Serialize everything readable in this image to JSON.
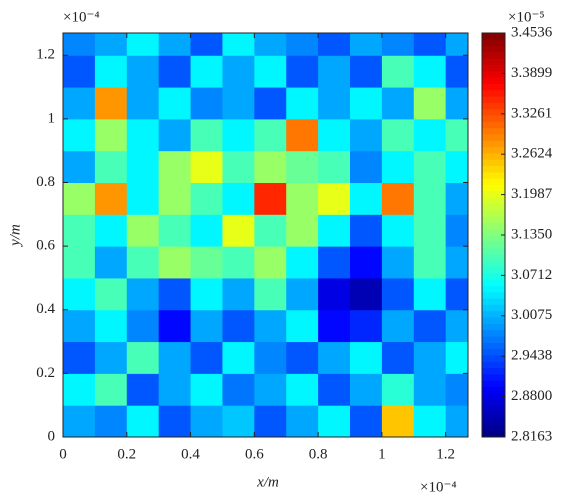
{
  "chart_data": {
    "type": "heatmap",
    "xlabel": "x/m",
    "ylabel": "y/m",
    "x_multiplier": "×10⁻⁴",
    "y_multiplier": "×10⁻⁴",
    "colorbar_multiplier": "×10⁻⁵",
    "colormap": "jet",
    "xlim": [
      0,
      1.27
    ],
    "ylim": [
      0,
      1.27
    ],
    "xticks": [
      0,
      0.2,
      0.4,
      0.6,
      0.8,
      1,
      1.2
    ],
    "yticks": [
      0,
      0.2,
      0.4,
      0.6,
      0.8,
      1,
      1.2
    ],
    "clim": [
      2.8163,
      3.4536
    ],
    "cticks": [
      2.8163,
      {
        "value": 2.88,
        "label": "2.8800"
      },
      2.9438,
      3.0075,
      3.0712,
      {
        "value": 3.135,
        "label": "3.1350"
      },
      3.1987,
      3.2624,
      3.3261,
      3.3899,
      3.4536
    ],
    "x": [
      0.05,
      0.15,
      0.25,
      0.35,
      0.45,
      0.55,
      0.65,
      0.75,
      0.85,
      0.95,
      1.05,
      1.15,
      1.25
    ],
    "y": [
      0.05,
      0.15,
      0.25,
      0.35,
      0.45,
      0.55,
      0.65,
      0.75,
      0.85,
      0.95,
      1.05,
      1.15,
      1.25
    ],
    "z": [
      [
        3.0,
        2.98,
        3.05,
        2.95,
        3.0,
        3.02,
        2.95,
        3.0,
        3.05,
        2.95,
        3.25,
        3.05,
        3.0
      ],
      [
        3.05,
        3.1,
        2.95,
        3.0,
        3.05,
        2.97,
        3.0,
        3.05,
        2.95,
        3.0,
        3.08,
        3.0,
        2.98
      ],
      [
        2.95,
        3.0,
        3.1,
        3.0,
        2.95,
        3.05,
        2.98,
        2.95,
        3.0,
        3.05,
        2.95,
        3.0,
        3.05
      ],
      [
        3.0,
        3.05,
        2.98,
        2.9,
        3.0,
        2.95,
        3.0,
        3.05,
        2.9,
        2.92,
        3.0,
        2.95,
        3.0
      ],
      [
        3.05,
        3.1,
        3.0,
        2.95,
        3.05,
        3.0,
        3.1,
        3.0,
        2.88,
        2.85,
        2.95,
        3.05,
        2.95
      ],
      [
        3.1,
        3.0,
        3.1,
        3.15,
        3.12,
        3.1,
        3.15,
        3.05,
        2.95,
        2.9,
        3.0,
        3.1,
        3.0
      ],
      [
        3.1,
        3.05,
        3.15,
        3.1,
        3.05,
        3.2,
        3.1,
        3.15,
        3.05,
        2.95,
        3.05,
        3.1,
        2.98
      ],
      [
        3.15,
        3.28,
        3.05,
        3.15,
        3.1,
        3.05,
        3.35,
        3.15,
        3.2,
        3.05,
        3.3,
        3.1,
        3.0
      ],
      [
        3.0,
        3.1,
        3.05,
        3.15,
        3.2,
        3.1,
        3.15,
        3.12,
        3.1,
        2.98,
        3.05,
        3.1,
        3.05
      ],
      [
        3.05,
        3.15,
        3.05,
        3.0,
        3.1,
        3.05,
        3.1,
        3.3,
        3.05,
        3.0,
        3.1,
        3.05,
        3.1
      ],
      [
        3.0,
        3.28,
        3.0,
        3.05,
        2.98,
        3.0,
        2.95,
        3.05,
        3.0,
        3.05,
        3.0,
        3.15,
        3.0
      ],
      [
        2.95,
        3.05,
        3.0,
        2.95,
        3.05,
        3.0,
        3.05,
        2.95,
        3.0,
        2.95,
        3.1,
        3.05,
        2.95
      ],
      [
        2.98,
        3.0,
        3.05,
        3.0,
        2.95,
        3.05,
        3.0,
        2.98,
        2.95,
        3.0,
        2.98,
        2.95,
        3.0
      ]
    ]
  }
}
